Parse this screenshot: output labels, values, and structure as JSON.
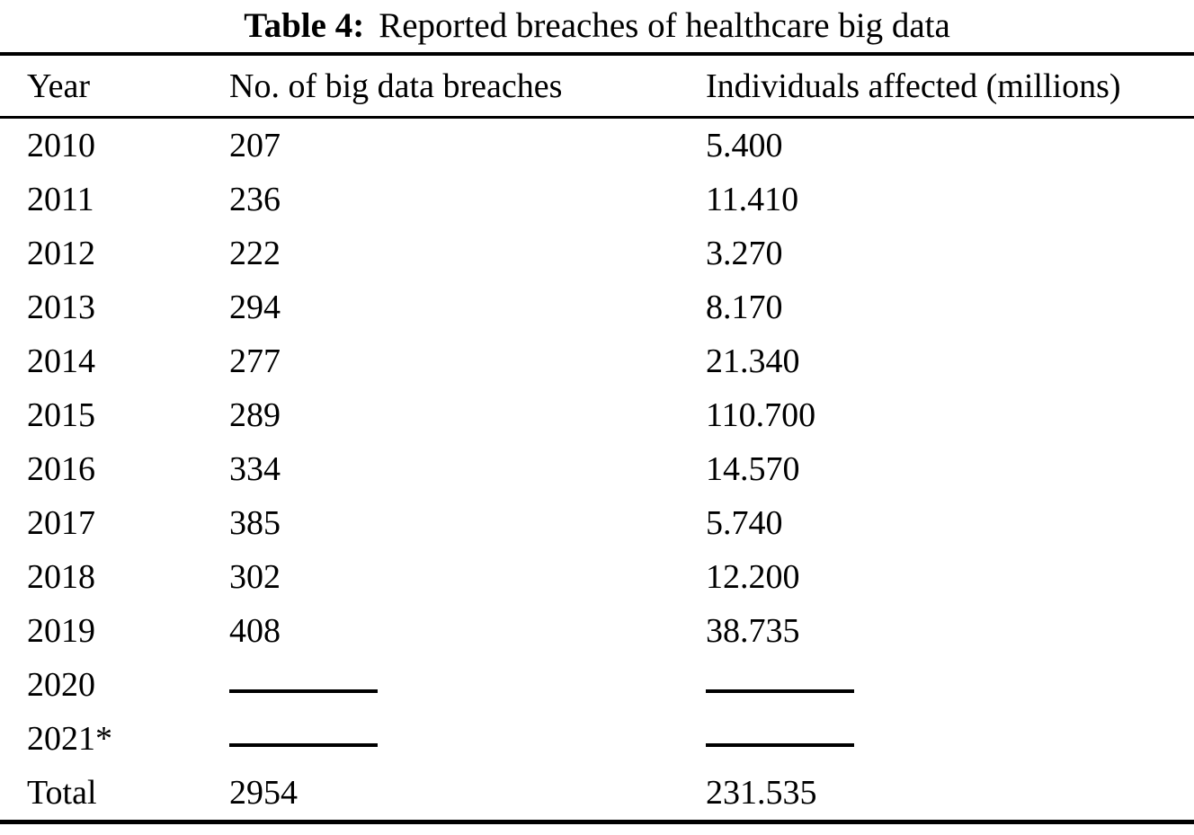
{
  "page": {
    "background": "#ffffff",
    "text_color": "#000000"
  },
  "table": {
    "title": {
      "label": "Table 4:",
      "text": "Reported breaches of healthcare big data"
    },
    "columns": [
      "Year",
      "No. of big data breaches",
      "Individuals affected (millions)"
    ],
    "rows": [
      {
        "year": "2010",
        "breaches": "207",
        "affected": "5.400",
        "blank": false
      },
      {
        "year": "2011",
        "breaches": "236",
        "affected": "11.410",
        "blank": false
      },
      {
        "year": "2012",
        "breaches": "222",
        "affected": "3.270",
        "blank": false
      },
      {
        "year": "2013",
        "breaches": "294",
        "affected": "8.170",
        "blank": false
      },
      {
        "year": "2014",
        "breaches": "277",
        "affected": "21.340",
        "blank": false
      },
      {
        "year": "2015",
        "breaches": "289",
        "affected": "110.700",
        "blank": false
      },
      {
        "year": "2016",
        "breaches": "334",
        "affected": "14.570",
        "blank": false
      },
      {
        "year": "2017",
        "breaches": "385",
        "affected": "5.740",
        "blank": false
      },
      {
        "year": "2018",
        "breaches": "302",
        "affected": "12.200",
        "blank": false
      },
      {
        "year": "2019",
        "breaches": "408",
        "affected": "38.735",
        "blank": false
      },
      {
        "year": "2020",
        "breaches": "",
        "affected": "",
        "blank": true
      },
      {
        "year": "2021*",
        "breaches": "",
        "affected": "",
        "blank": true
      }
    ],
    "total_row": {
      "year": "Total",
      "breaches": "2954",
      "affected": "231.535"
    },
    "blank_marker": "horizontal-rule"
  },
  "chart_data": {
    "type": "table",
    "title": "Table 4: Reported breaches of healthcare big data",
    "columns": [
      "Year",
      "No. of big data breaches",
      "Individuals affected (millions)"
    ],
    "years": [
      "2010",
      "2011",
      "2012",
      "2013",
      "2014",
      "2015",
      "2016",
      "2017",
      "2018",
      "2019"
    ],
    "breaches": [
      207,
      236,
      222,
      294,
      277,
      289,
      334,
      385,
      302,
      408
    ],
    "individuals_affected_millions": [
      5.4,
      11.41,
      3.27,
      8.17,
      21.34,
      110.7,
      14.57,
      5.74,
      12.2,
      38.735
    ],
    "blank_years": [
      "2020",
      "2021*"
    ],
    "total": {
      "breaches": 2954,
      "individuals_affected_millions": 231.535
    }
  }
}
